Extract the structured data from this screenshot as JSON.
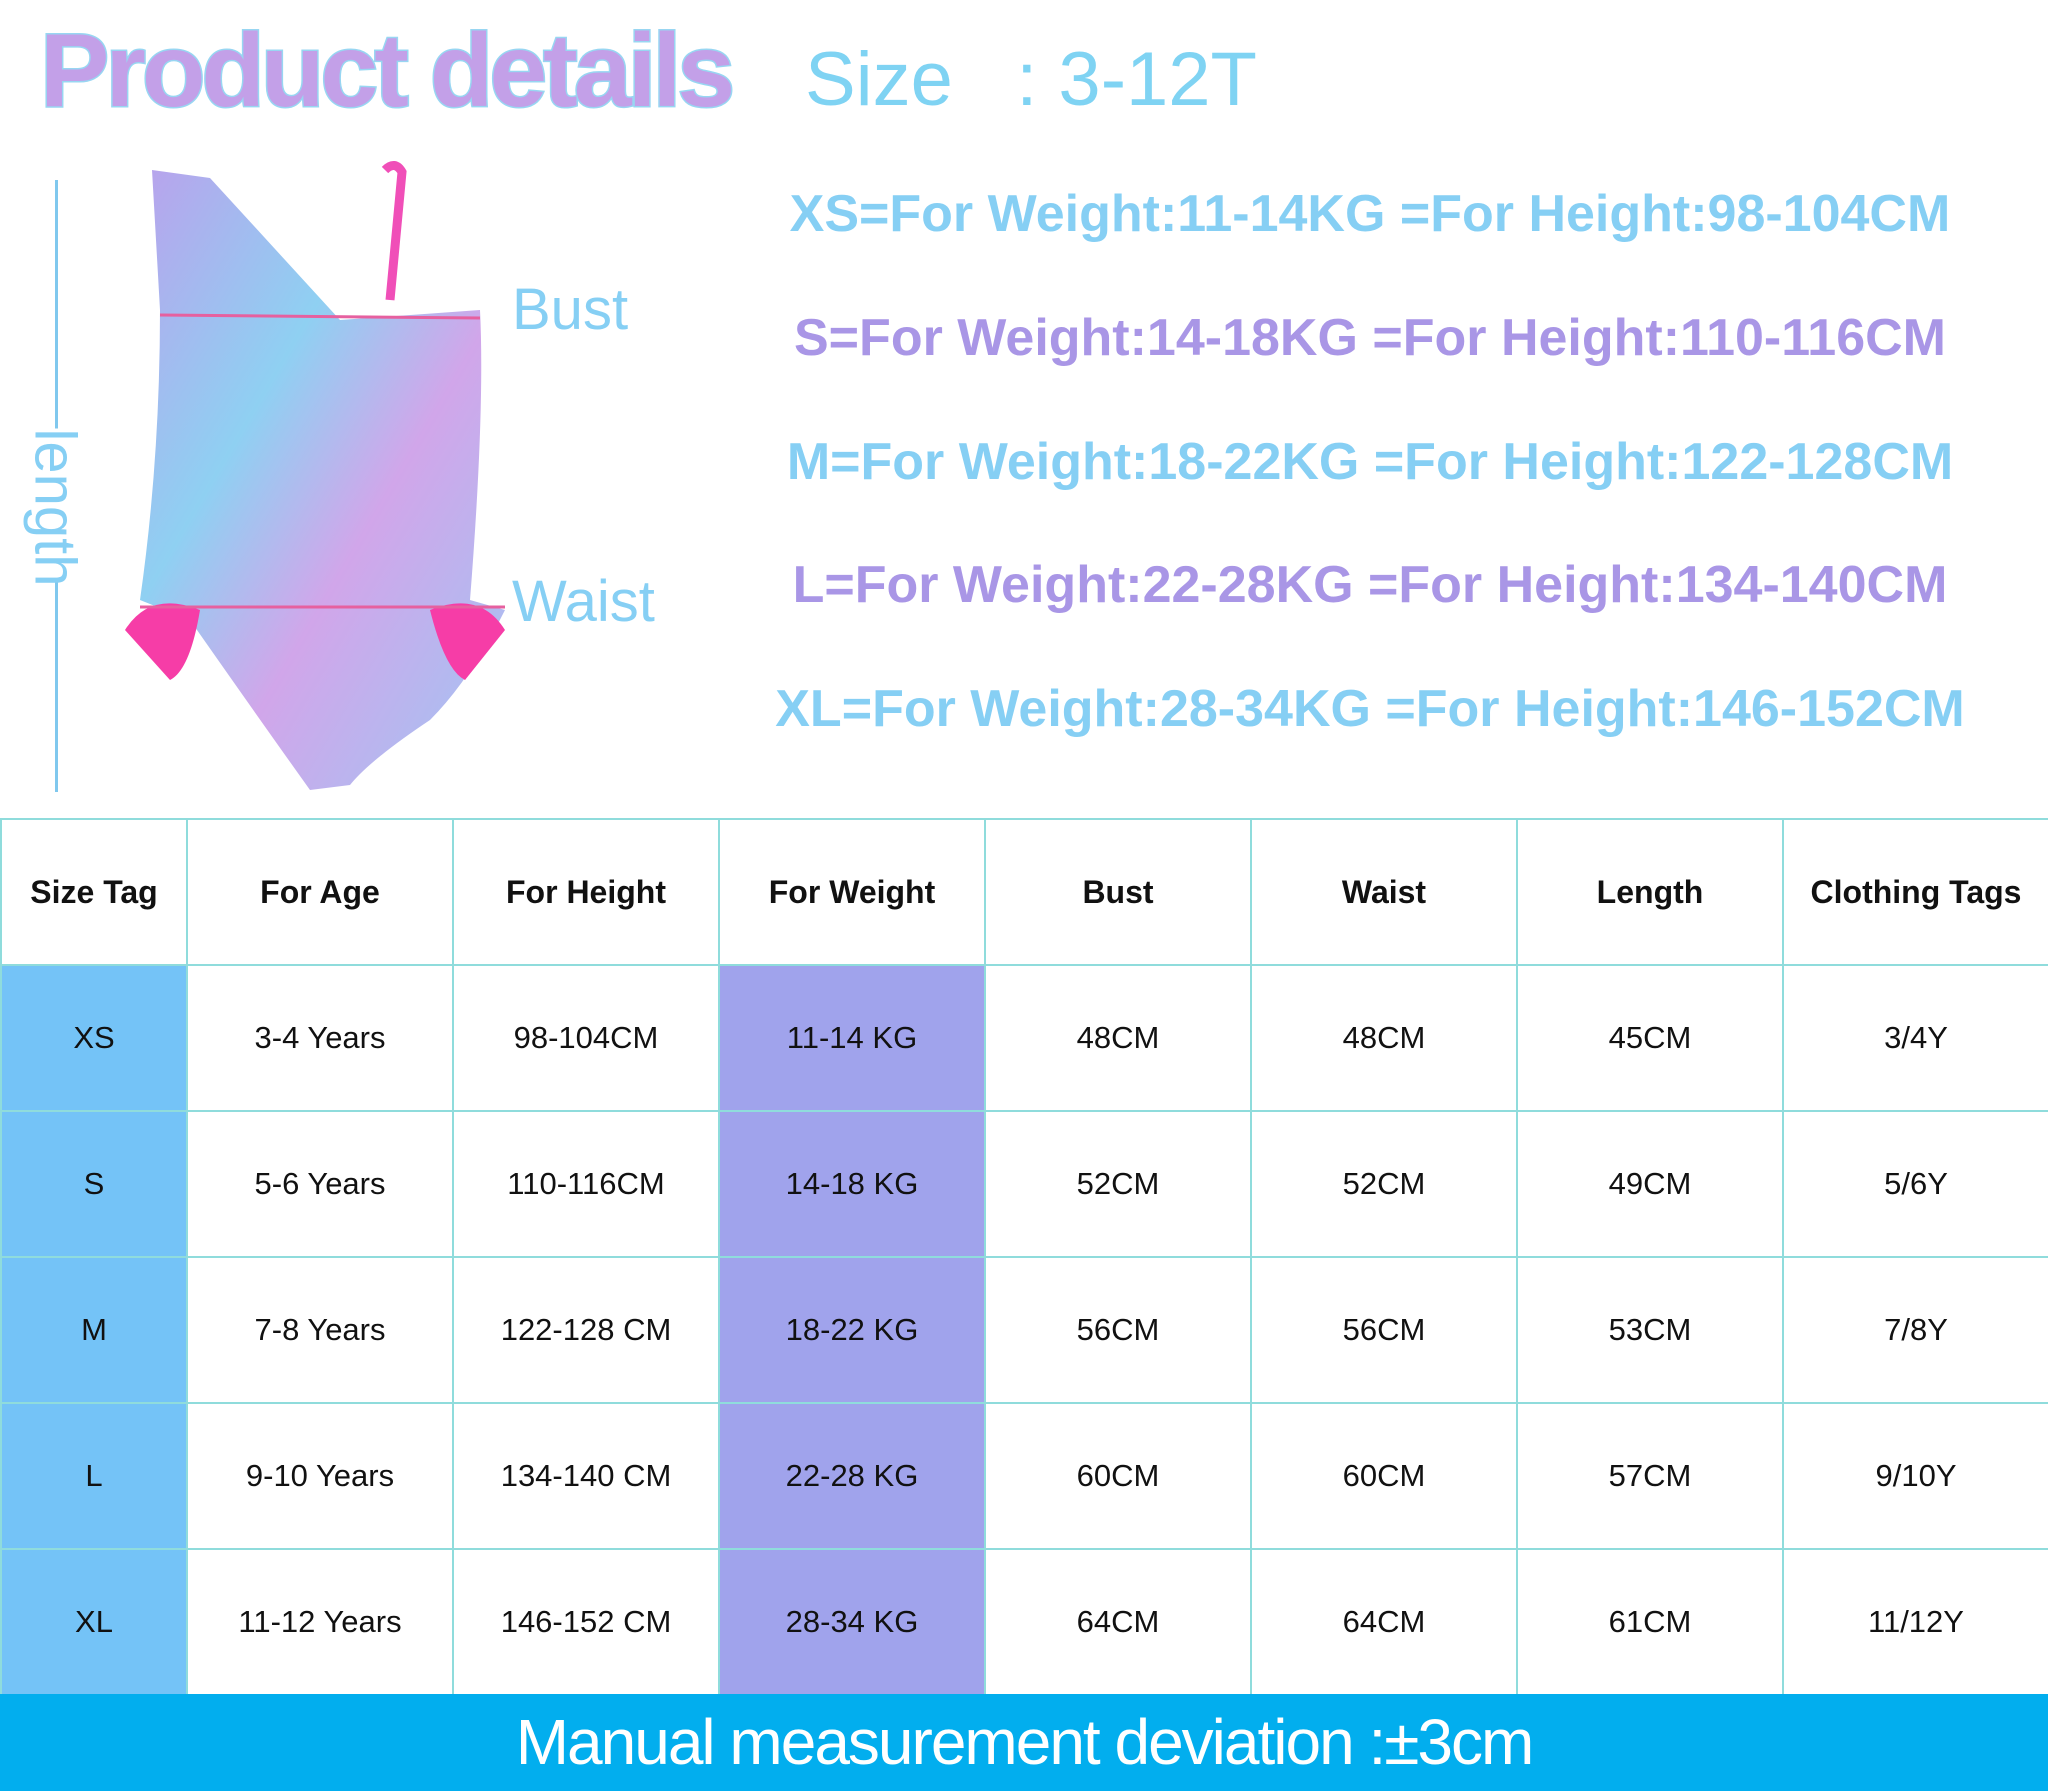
{
  "header": {
    "title": "Product details",
    "size_range": "Size   : 3-12T"
  },
  "size_lines": [
    {
      "text": "XS=For Weight:11-14KG =For Height:98-104CM",
      "color": "blue"
    },
    {
      "text": "S=For Weight:14-18KG =For Height:110-116CM",
      "color": "purple"
    },
    {
      "text": "M=For Weight:18-22KG =For Height:122-128CM",
      "color": "blue"
    },
    {
      "text": "L=For Weight:22-28KG =For Height:134-140CM",
      "color": "purple"
    },
    {
      "text": "XL=For Weight:28-34KG =For Height:146-152CM",
      "color": "blue"
    }
  ],
  "diagram": {
    "bust_label": "Bust",
    "waist_label": "Waist",
    "length_label": "length"
  },
  "table": {
    "headers": [
      "Size Tag",
      "For Age",
      "For Height",
      "For Weight",
      "Bust",
      "Waist",
      "Length",
      "Clothing Tags"
    ],
    "rows": [
      [
        "XS",
        "3-4 Years",
        "98-104CM",
        "11-14 KG",
        "48CM",
        "48CM",
        "45CM",
        "3/4Y"
      ],
      [
        "S",
        "5-6 Years",
        "110-116CM",
        "14-18 KG",
        "52CM",
        "52CM",
        "49CM",
        "5/6Y"
      ],
      [
        "M",
        "7-8 Years",
        "122-128 CM",
        "18-22 KG",
        "56CM",
        "56CM",
        "53CM",
        "7/8Y"
      ],
      [
        "L",
        "9-10 Years",
        "134-140 CM",
        "22-28 KG",
        "60CM",
        "60CM",
        "57CM",
        "9/10Y"
      ],
      [
        "XL",
        "11-12 Years",
        "146-152 CM",
        "28-34 KG",
        "64CM",
        "64CM",
        "61CM",
        "11/12Y"
      ]
    ]
  },
  "footer": {
    "text": "Manual measurement deviation  :±3cm"
  },
  "colors": {
    "tag_column": "#74c3f7",
    "weight_column": "#a0a3ec",
    "footer_bg": "#02aeee",
    "grid": "#8fdcdc"
  }
}
